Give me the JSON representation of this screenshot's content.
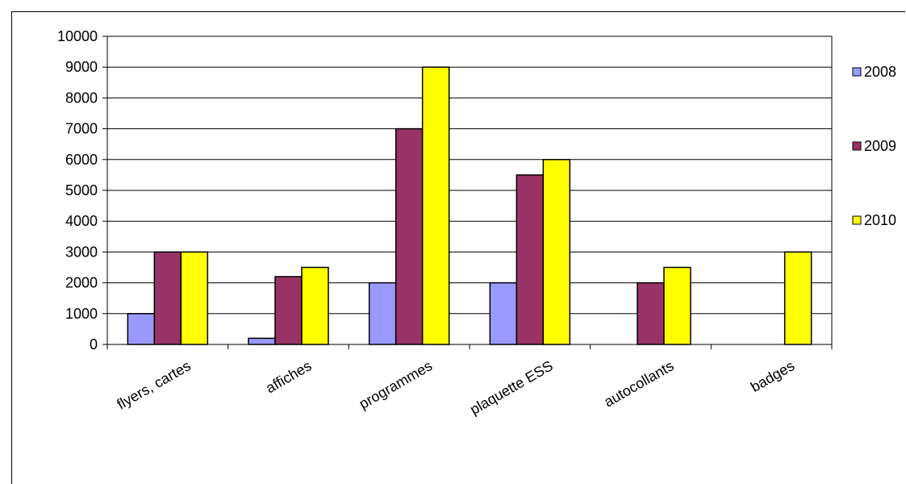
{
  "chart_data": {
    "type": "bar",
    "title": "",
    "xlabel": "",
    "ylabel": "",
    "ylim": [
      0,
      10000
    ],
    "ytick_step": 1000,
    "grid": true,
    "legend_position": "right",
    "categories": [
      "flyers, cartes",
      "affiches",
      "programmes",
      "plaquette ESS",
      "autocollants",
      "badges"
    ],
    "series": [
      {
        "name": "2008",
        "color": "#9999ff",
        "values": [
          1000,
          200,
          2000,
          2000,
          0,
          0
        ]
      },
      {
        "name": "2009",
        "color": "#993366",
        "values": [
          3000,
          2200,
          7000,
          5500,
          2000,
          0
        ]
      },
      {
        "name": "2010",
        "color": "#ffff00",
        "values": [
          3000,
          2500,
          9000,
          6000,
          2500,
          3000
        ]
      }
    ]
  }
}
